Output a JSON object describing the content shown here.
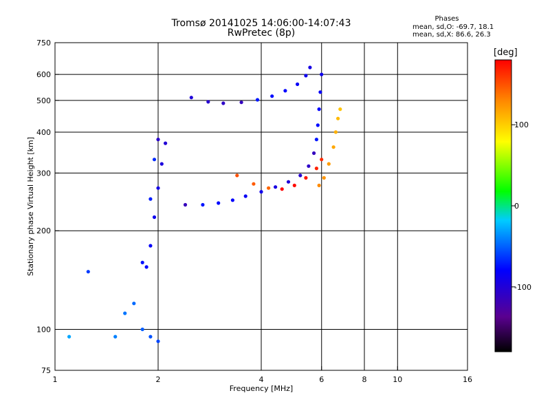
{
  "header": {
    "title_line1": "Tromsø 20141025 14:06:00-14:07:43",
    "title_line2": "RwPretec (8p)",
    "stats_title": "Phases",
    "stats_line1": "mean, sd,O: -69.7, 18.1",
    "stats_line2": "mean, sd,X:  86.6, 26.3"
  },
  "colorbar": {
    "unit_label": "[deg]",
    "tick_labels": [
      "100",
      "0",
      "-100"
    ],
    "tick_values": [
      100,
      0,
      -100
    ],
    "range": [
      -180,
      180
    ]
  },
  "chart_data": {
    "type": "scatter",
    "xlabel": "Frequency [MHz]",
    "ylabel": "Stationary phase Virtual Height [km]",
    "x_scale": "log",
    "y_scale": "log",
    "xlim": [
      1,
      16
    ],
    "ylim": [
      75,
      750
    ],
    "x_ticks": [
      1,
      2,
      4,
      6,
      8,
      10,
      16
    ],
    "x_tick_labels": [
      "1",
      "2",
      "4",
      "6",
      "8",
      "10",
      "16"
    ],
    "y_ticks": [
      75,
      100,
      200,
      300,
      400,
      500,
      600,
      750
    ],
    "y_tick_labels": [
      "75",
      "100",
      "200",
      "300",
      "400",
      "500",
      "600",
      "750"
    ],
    "gridlines_x": [
      2,
      4,
      6,
      8,
      10
    ],
    "gridlines_y": [
      100,
      200,
      300,
      400,
      500,
      600
    ],
    "traces": [
      {
        "name": "",
        "phase": -110,
        "points": [
          [
            2.4,
            240
          ],
          [
            2.7,
            240
          ],
          [
            3.0,
            243
          ],
          [
            3.3,
            248
          ],
          [
            3.6,
            255
          ],
          [
            4.0,
            263
          ],
          [
            4.4,
            272
          ],
          [
            4.8,
            282
          ],
          [
            5.2,
            295
          ],
          [
            5.5,
            315
          ],
          [
            5.7,
            345
          ],
          [
            5.8,
            380
          ],
          [
            5.85,
            420
          ],
          [
            5.9,
            470
          ],
          [
            5.95,
            530
          ],
          [
            6.0,
            600
          ]
        ]
      },
      {
        "name": "",
        "phase": -110,
        "points": [
          [
            2.5,
            510
          ],
          [
            2.8,
            495
          ],
          [
            3.1,
            490
          ],
          [
            3.5,
            493
          ],
          [
            3.9,
            502
          ],
          [
            4.3,
            515
          ],
          [
            4.7,
            535
          ],
          [
            5.1,
            560
          ],
          [
            5.4,
            595
          ],
          [
            5.55,
            630
          ]
        ]
      },
      {
        "name": "",
        "phase": -105,
        "points": [
          [
            1.85,
            155
          ],
          [
            1.9,
            180
          ],
          [
            1.95,
            220
          ],
          [
            2.0,
            270
          ],
          [
            2.05,
            320
          ],
          [
            2.1,
            370
          ],
          [
            2.0,
            380
          ],
          [
            1.95,
            330
          ],
          [
            1.9,
            250
          ],
          [
            1.8,
            160
          ]
        ]
      },
      {
        "name": "",
        "phase": 110,
        "points": [
          [
            5.9,
            275
          ],
          [
            6.1,
            290
          ],
          [
            6.3,
            320
          ],
          [
            6.5,
            360
          ],
          [
            6.6,
            400
          ],
          [
            6.7,
            440
          ],
          [
            6.8,
            470
          ]
        ]
      },
      {
        "name": "",
        "phase": 160,
        "points": [
          [
            3.4,
            295
          ],
          [
            3.8,
            278
          ],
          [
            4.2,
            270
          ],
          [
            4.6,
            268
          ],
          [
            5.0,
            275
          ],
          [
            5.4,
            290
          ],
          [
            5.8,
            310
          ],
          [
            6.0,
            330
          ]
        ]
      },
      {
        "name": "",
        "phase": -60,
        "points": [
          [
            1.5,
            95
          ],
          [
            1.6,
            112
          ],
          [
            1.7,
            120
          ],
          [
            1.8,
            100
          ],
          [
            1.9,
            95
          ],
          [
            2.0,
            92
          ],
          [
            1.25,
            150
          ],
          [
            1.1,
            95
          ]
        ]
      }
    ]
  }
}
